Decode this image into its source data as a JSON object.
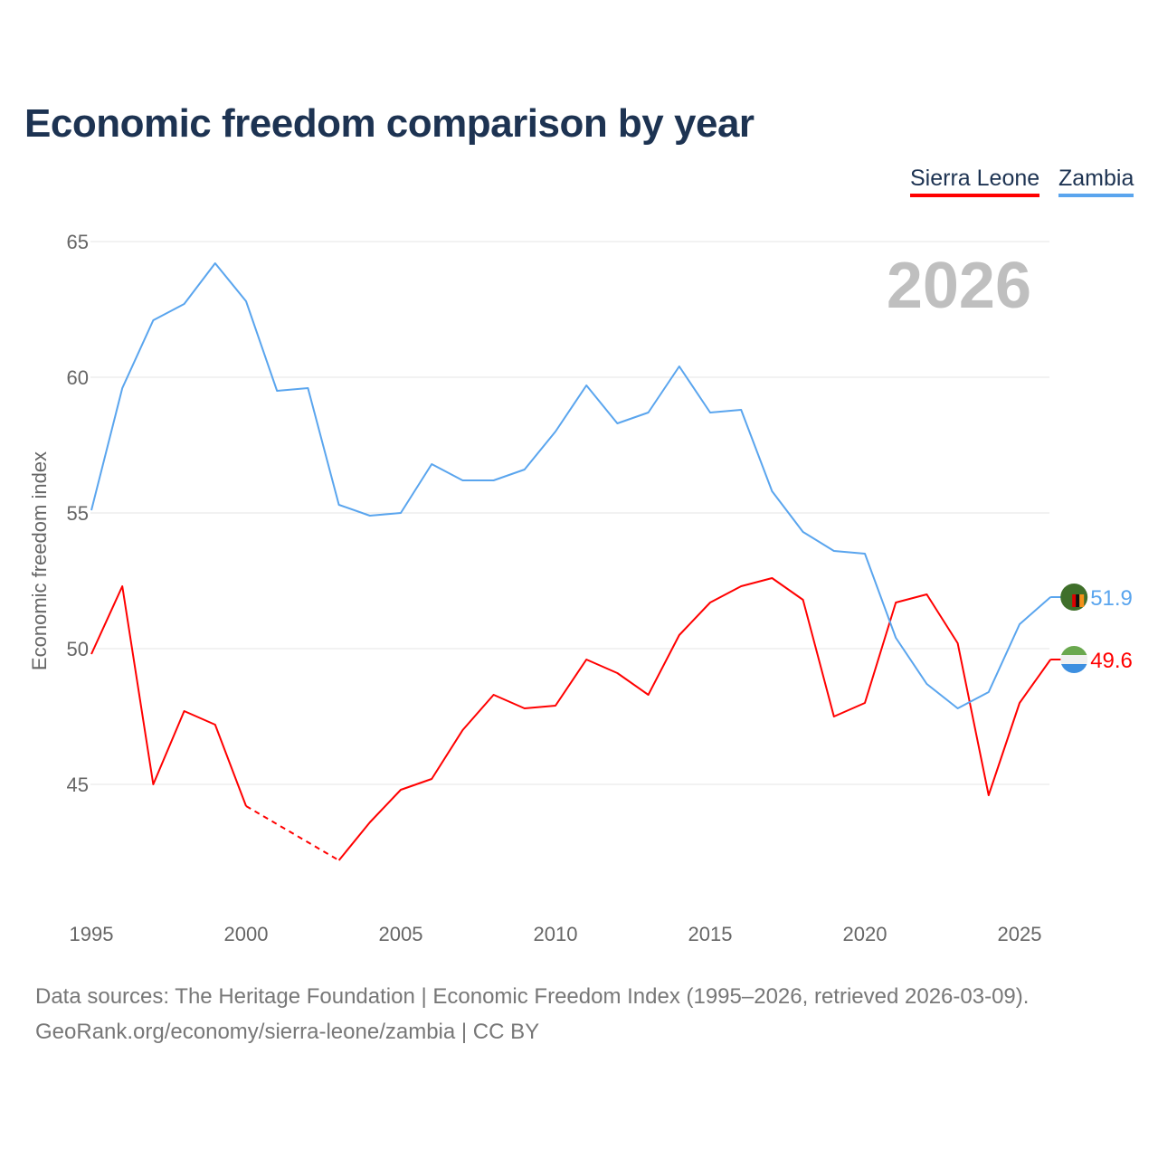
{
  "title": "Economic freedom comparison by year",
  "footer": {
    "line1": "Data sources: The Heritage Foundation | Economic Freedom Index (1995–2026, retrieved 2026-03-09).",
    "line2": "GeoRank.org/economy/sierra-leone/zambia | CC BY"
  },
  "chart_data": {
    "type": "line",
    "title": "Economic freedom comparison by year",
    "ylabel": "Economic freedom index",
    "xlabel": "",
    "year_watermark": "2026",
    "ylim": [
      40,
      65
    ],
    "xlim": [
      1995,
      2026
    ],
    "yticks": [
      "45",
      "50",
      "55",
      "60",
      "65"
    ],
    "xticks": [
      "1995",
      "2000",
      "2005",
      "2010",
      "2015",
      "2020",
      "2025"
    ],
    "grid": true,
    "legend_position": "top-right",
    "x": [
      1995,
      1996,
      1997,
      1998,
      1999,
      2000,
      2001,
      2002,
      2003,
      2004,
      2005,
      2006,
      2007,
      2008,
      2009,
      2010,
      2011,
      2012,
      2013,
      2014,
      2015,
      2016,
      2017,
      2018,
      2019,
      2020,
      2021,
      2022,
      2023,
      2024,
      2025,
      2026
    ],
    "series": [
      {
        "name": "Sierra Leone",
        "color": "#ff0000",
        "end_label": "49.6",
        "values": [
          49.8,
          52.3,
          45.0,
          47.7,
          47.2,
          44.2,
          null,
          null,
          42.2,
          43.6,
          44.8,
          45.2,
          47.0,
          48.3,
          47.8,
          47.9,
          49.6,
          49.1,
          48.3,
          50.5,
          51.7,
          52.3,
          52.6,
          51.8,
          47.5,
          48.0,
          51.7,
          52.0,
          50.2,
          44.6,
          48.0,
          49.6
        ]
      },
      {
        "name": "Zambia",
        "color": "#5aa5ee",
        "end_label": "51.9",
        "values": [
          55.1,
          59.6,
          62.1,
          62.7,
          64.2,
          62.8,
          59.5,
          59.6,
          55.3,
          54.9,
          55.0,
          56.8,
          56.2,
          56.2,
          56.6,
          58.0,
          59.7,
          58.3,
          58.7,
          60.4,
          58.7,
          58.8,
          55.8,
          54.3,
          53.6,
          53.5,
          50.4,
          48.7,
          47.8,
          48.4,
          50.9,
          51.9
        ]
      }
    ]
  }
}
